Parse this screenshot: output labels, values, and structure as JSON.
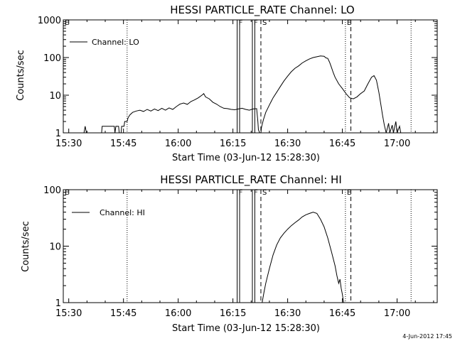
{
  "footer_timestamp": "4-Jun-2012 17:45",
  "chart_data": [
    {
      "type": "line",
      "title": "HESSI PARTICLE_RATE Channel: LO",
      "xlabel": "Start Time (03-Jun-12 15:28:30)",
      "ylabel": "Counts/sec",
      "x_ticks": [
        "15:30",
        "15:45",
        "16:00",
        "16:15",
        "16:30",
        "16:45",
        "17:00"
      ],
      "y_scale": "log",
      "y_ticks": [
        1,
        10,
        100,
        1000
      ],
      "ylim": [
        1,
        1000
      ],
      "xlim": [
        "15:28:30",
        "17:11:00"
      ],
      "legend": {
        "label": "Channel: LO",
        "position": "top-left"
      },
      "markers": [
        {
          "label": "E",
          "time": "15:28:30",
          "style": "none"
        },
        {
          "label": "",
          "time": "15:46:00",
          "style": "dotted"
        },
        {
          "label": "F",
          "time": "16:16:10",
          "style": "solid"
        },
        {
          "label": "",
          "time": "16:16:50",
          "style": "solid"
        },
        {
          "label": "F",
          "time": "16:20:20",
          "style": "solid"
        },
        {
          "label": "",
          "time": "16:21:00",
          "style": "solid"
        },
        {
          "label": "S",
          "time": "16:22:40",
          "style": "dashed"
        },
        {
          "label": "E",
          "time": "16:45:50",
          "style": "dotted"
        },
        {
          "label": "",
          "time": "16:47:20",
          "style": "dashed"
        },
        {
          "label": "",
          "time": "17:03:50",
          "style": "dotted"
        }
      ],
      "series": [
        {
          "name": "Channel: LO",
          "points": [
            [
              "15:34:10",
              1
            ],
            [
              "15:34:30",
              1.5
            ],
            [
              "15:34:50",
              1
            ],
            [
              "15:39:00",
              1
            ],
            [
              "15:39:10",
              1.5
            ],
            [
              "15:42:30",
              1.5
            ],
            [
              "15:42:40",
              1
            ],
            [
              "15:42:55",
              1.5
            ],
            [
              "15:43:40",
              1.5
            ],
            [
              "15:43:50",
              1
            ],
            [
              "15:44:20",
              1
            ],
            [
              "15:44:30",
              1.5
            ],
            [
              "15:45:10",
              1.5
            ],
            [
              "15:45:20",
              2
            ],
            [
              "15:46:00",
              2
            ],
            [
              "15:46:15",
              2.5
            ],
            [
              "15:46:45",
              3
            ],
            [
              "15:47:30",
              3.5
            ],
            [
              "15:48:30",
              3.8
            ],
            [
              "15:49:30",
              4
            ],
            [
              "15:50:30",
              3.7
            ],
            [
              "15:51:30",
              4.2
            ],
            [
              "15:52:30",
              3.8
            ],
            [
              "15:53:30",
              4.3
            ],
            [
              "15:54:30",
              3.9
            ],
            [
              "15:55:30",
              4.5
            ],
            [
              "15:56:30",
              4
            ],
            [
              "15:57:30",
              4.6
            ],
            [
              "15:58:30",
              4.2
            ],
            [
              "15:59:30",
              5
            ],
            [
              "16:00:30",
              5.8
            ],
            [
              "16:01:30",
              6.2
            ],
            [
              "16:02:30",
              5.7
            ],
            [
              "16:03:30",
              6.8
            ],
            [
              "16:04:30",
              7.5
            ],
            [
              "16:05:30",
              8.5
            ],
            [
              "16:06:30",
              10
            ],
            [
              "16:07:00",
              11
            ],
            [
              "16:07:30",
              9
            ],
            [
              "16:08:30",
              8
            ],
            [
              "16:09:30",
              6.5
            ],
            [
              "16:10:30",
              5.8
            ],
            [
              "16:11:30",
              5
            ],
            [
              "16:12:30",
              4.5
            ],
            [
              "16:13:30",
              4.4
            ],
            [
              "16:14:30",
              4.2
            ],
            [
              "16:15:30",
              4.1
            ],
            [
              "16:16:30",
              4.3
            ],
            [
              "16:17:30",
              4.5
            ],
            [
              "16:18:30",
              4.2
            ],
            [
              "16:19:30",
              4
            ],
            [
              "16:20:30",
              4.3
            ],
            [
              "16:21:30",
              4.4
            ],
            [
              "16:21:50",
              2
            ],
            [
              "16:22:00",
              1.2
            ],
            [
              "16:22:20",
              1
            ],
            [
              "16:22:40",
              1
            ],
            [
              "16:22:50",
              1.4
            ],
            [
              "16:23:20",
              2.2
            ],
            [
              "16:24:00",
              3.5
            ],
            [
              "16:25:00",
              5.5
            ],
            [
              "16:26:00",
              8.5
            ],
            [
              "16:27:00",
              12
            ],
            [
              "16:28:00",
              17
            ],
            [
              "16:29:00",
              24
            ],
            [
              "16:30:00",
              32
            ],
            [
              "16:31:00",
              42
            ],
            [
              "16:32:00",
              52
            ],
            [
              "16:33:00",
              60
            ],
            [
              "16:34:00",
              72
            ],
            [
              "16:35:00",
              82
            ],
            [
              "16:36:00",
              92
            ],
            [
              "16:37:00",
              100
            ],
            [
              "16:38:00",
              105
            ],
            [
              "16:39:00",
              110
            ],
            [
              "16:40:00",
              108
            ],
            [
              "16:40:30",
              98
            ],
            [
              "16:41:00",
              95
            ],
            [
              "16:41:30",
              75
            ],
            [
              "16:42:00",
              55
            ],
            [
              "16:42:30",
              40
            ],
            [
              "16:43:00",
              30
            ],
            [
              "16:44:00",
              20
            ],
            [
              "16:45:00",
              15
            ],
            [
              "16:46:00",
              11
            ],
            [
              "16:47:00",
              8.5
            ],
            [
              "16:48:00",
              8
            ],
            [
              "16:49:00",
              9
            ],
            [
              "16:50:00",
              11
            ],
            [
              "16:51:00",
              13
            ],
            [
              "16:52:00",
              20
            ],
            [
              "16:53:00",
              30
            ],
            [
              "16:53:40",
              33
            ],
            [
              "16:54:20",
              25
            ],
            [
              "16:55:00",
              12
            ],
            [
              "16:55:30",
              6
            ],
            [
              "16:56:00",
              3
            ],
            [
              "16:56:30",
              1.6
            ],
            [
              "16:57:00",
              1
            ],
            [
              "16:57:40",
              1.8
            ],
            [
              "16:58:00",
              1
            ],
            [
              "16:58:40",
              1.6
            ],
            [
              "16:59:00",
              1
            ],
            [
              "16:59:40",
              2
            ],
            [
              "17:00:00",
              1
            ],
            [
              "17:00:40",
              1.5
            ],
            [
              "17:01:00",
              1
            ]
          ]
        }
      ]
    },
    {
      "type": "line",
      "title": "HESSI PARTICLE_RATE Channel: HI",
      "xlabel": "Start Time (03-Jun-12 15:28:30)",
      "ylabel": "Counts/sec",
      "x_ticks": [
        "15:30",
        "15:45",
        "16:00",
        "16:15",
        "16:30",
        "16:45",
        "17:00"
      ],
      "y_scale": "log",
      "y_ticks": [
        1,
        10,
        100
      ],
      "ylim": [
        1,
        100
      ],
      "xlim": [
        "15:28:30",
        "17:11:00"
      ],
      "legend": {
        "label": "Channel: HI",
        "position": "top-left"
      },
      "markers": [
        {
          "label": "E",
          "time": "15:28:30",
          "style": "none"
        },
        {
          "label": "",
          "time": "15:46:00",
          "style": "dotted"
        },
        {
          "label": "F",
          "time": "16:16:10",
          "style": "solid"
        },
        {
          "label": "",
          "time": "16:16:50",
          "style": "solid"
        },
        {
          "label": "F",
          "time": "16:20:20",
          "style": "solid"
        },
        {
          "label": "",
          "time": "16:21:00",
          "style": "solid"
        },
        {
          "label": "S",
          "time": "16:22:40",
          "style": "dashed"
        },
        {
          "label": "E",
          "time": "16:45:50",
          "style": "dotted"
        },
        {
          "label": "",
          "time": "16:47:20",
          "style": "dashed"
        },
        {
          "label": "",
          "time": "17:03:50",
          "style": "dotted"
        }
      ],
      "series": [
        {
          "name": "Channel: HI",
          "points": [
            [
              "16:23:00",
              1
            ],
            [
              "16:23:30",
              1.5
            ],
            [
              "16:24:00",
              2.2
            ],
            [
              "16:25:00",
              4
            ],
            [
              "16:26:00",
              7
            ],
            [
              "16:27:00",
              10.5
            ],
            [
              "16:28:00",
              14
            ],
            [
              "16:29:00",
              17
            ],
            [
              "16:30:00",
              20
            ],
            [
              "16:31:00",
              23
            ],
            [
              "16:32:00",
              26
            ],
            [
              "16:33:00",
              29
            ],
            [
              "16:34:00",
              33
            ],
            [
              "16:35:00",
              36
            ],
            [
              "16:36:00",
              38
            ],
            [
              "16:37:00",
              40
            ],
            [
              "16:38:00",
              38
            ],
            [
              "16:39:00",
              30
            ],
            [
              "16:40:00",
              22
            ],
            [
              "16:41:00",
              14
            ],
            [
              "16:42:00",
              8
            ],
            [
              "16:43:00",
              4.5
            ],
            [
              "16:43:30",
              3
            ],
            [
              "16:44:00",
              2.2
            ],
            [
              "16:44:20",
              2.6
            ],
            [
              "16:44:40",
              1.8
            ],
            [
              "16:45:00",
              1.4
            ],
            [
              "16:45:20",
              1
            ]
          ]
        }
      ]
    }
  ]
}
